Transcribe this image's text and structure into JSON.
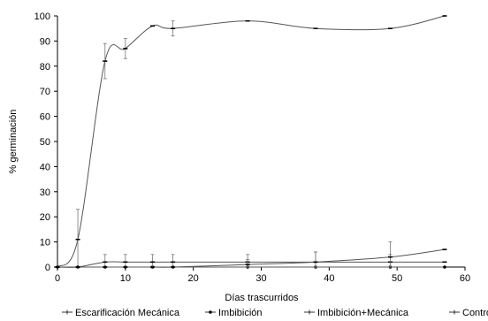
{
  "chart_data": {
    "type": "line",
    "xlabel": "Días trascurridos",
    "ylabel": "% germinación",
    "xlim": [
      0,
      60
    ],
    "ylim": [
      0,
      100
    ],
    "xticks": [
      "0",
      "10",
      "20",
      "30",
      "40",
      "50",
      "60"
    ],
    "yticks": [
      "0",
      "10",
      "20",
      "30",
      "40",
      "50",
      "60",
      "70",
      "80",
      "90",
      "100"
    ],
    "grid": false,
    "legend_position": "bottom",
    "series": [
      {
        "name": "Escarificación Mecánica",
        "marker": "dash",
        "x": [
          0,
          3,
          7,
          10,
          14,
          17,
          28,
          38,
          49,
          57
        ],
        "y": [
          0,
          11,
          82,
          87,
          96,
          95,
          98,
          95,
          95,
          100
        ],
        "err": [
          0,
          12,
          7,
          4,
          0,
          3,
          0,
          0,
          0,
          0
        ]
      },
      {
        "name": "Imbibición",
        "marker": "dot",
        "x": [
          0,
          3,
          7,
          10,
          14,
          17,
          28,
          38,
          49,
          57
        ],
        "y": [
          0,
          0,
          0,
          0,
          0,
          0,
          0,
          0,
          0,
          0
        ],
        "err": [
          0,
          0,
          0,
          0,
          0,
          0,
          0,
          0,
          0,
          0
        ]
      },
      {
        "name": "Imbibición+Mecánica",
        "marker": "dash",
        "x": [
          0,
          3,
          7,
          10,
          14,
          17,
          28,
          38,
          49,
          57
        ],
        "y": [
          0,
          0,
          2,
          2,
          2,
          2,
          2,
          2,
          2,
          2
        ],
        "err": [
          0,
          0,
          3,
          3,
          3,
          3,
          3,
          4,
          3,
          0
        ]
      },
      {
        "name": "Control",
        "marker": "dash",
        "x": [
          0,
          3,
          7,
          10,
          14,
          17,
          28,
          38,
          49,
          57
        ],
        "y": [
          0,
          0,
          0,
          0,
          0,
          0,
          1,
          2,
          4,
          7
        ],
        "err": [
          0,
          0,
          0,
          0,
          0,
          0,
          2,
          4,
          6,
          0
        ]
      }
    ]
  }
}
